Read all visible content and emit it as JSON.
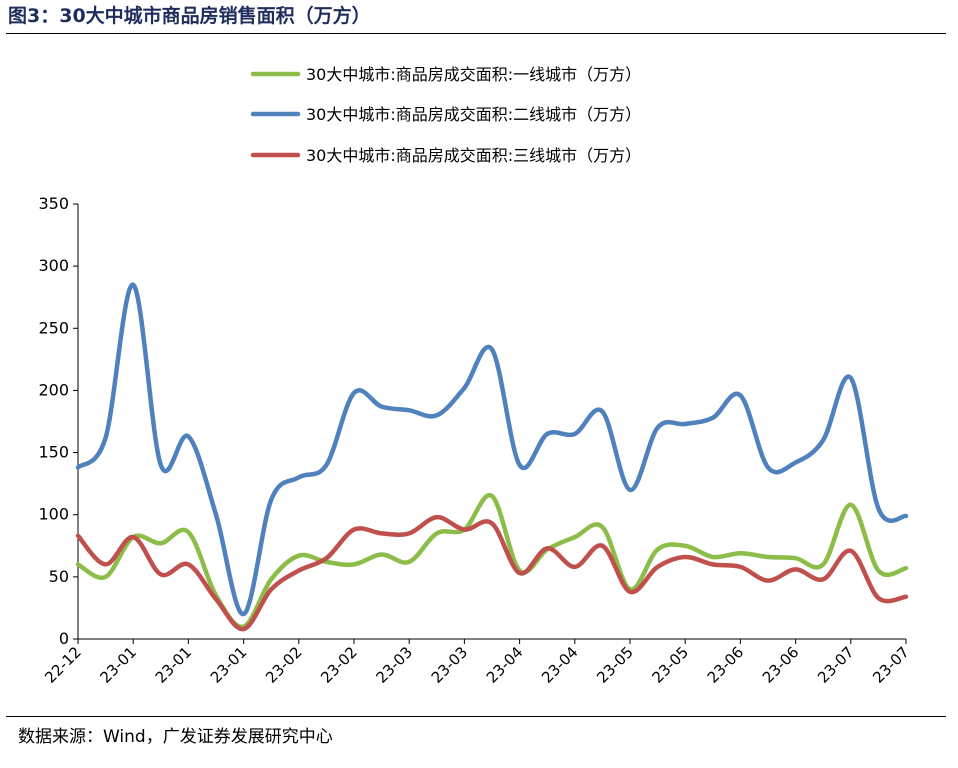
{
  "figure": {
    "title": "图3：30大中城市商品房销售面积（万方）",
    "source": "数据来源：Wind，广发证券发展研究中心"
  },
  "chart_data": {
    "type": "line",
    "title": "",
    "xlabel": "",
    "ylabel": "",
    "ylim": [
      0,
      350
    ],
    "yticks": [
      0,
      50,
      100,
      150,
      200,
      250,
      300,
      350
    ],
    "grid": false,
    "legend_position": "top",
    "x_tick_labels": [
      "22-12",
      "23-01",
      "23-01",
      "23-01",
      "23-02",
      "23-02",
      "23-03",
      "23-03",
      "23-04",
      "23-04",
      "23-05",
      "23-05",
      "23-06",
      "23-06",
      "23-07",
      "23-07"
    ],
    "series": [
      {
        "name": "30大中城市:商品房成交面积:一线城市（万方）",
        "color": "#8cbd48",
        "values": [
          60,
          50,
          82,
          77,
          86,
          35,
          10,
          48,
          67,
          62,
          60,
          68,
          62,
          85,
          88,
          115,
          55,
          72,
          82,
          90,
          40,
          72,
          75,
          66,
          69,
          66,
          65,
          60,
          108,
          55,
          57
        ]
      },
      {
        "name": "30大中城市:商品房成交面积:二线城市（万方）",
        "color": "#4f81bd",
        "values": [
          138,
          162,
          285,
          140,
          163,
          100,
          20,
          112,
          130,
          140,
          198,
          187,
          184,
          180,
          202,
          233,
          140,
          165,
          165,
          183,
          120,
          170,
          173,
          178,
          196,
          138,
          142,
          160,
          210,
          105,
          99
        ]
      },
      {
        "name": "30大中城市:商品房成交面积:三线城市（万方）",
        "color": "#c0504d",
        "values": [
          83,
          60,
          82,
          52,
          60,
          32,
          8,
          40,
          55,
          65,
          88,
          85,
          85,
          98,
          88,
          93,
          53,
          73,
          58,
          75,
          38,
          58,
          66,
          60,
          58,
          47,
          56,
          48,
          71,
          33,
          34
        ]
      }
    ]
  }
}
